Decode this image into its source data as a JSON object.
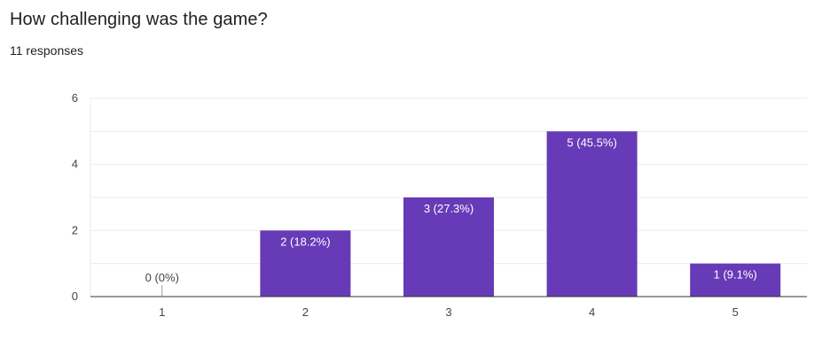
{
  "question": {
    "title": "How challenging was the game?",
    "responses": "11 responses"
  },
  "colors": {
    "bar": "#673ab7",
    "grid": "#ebebeb",
    "axis": "#333333",
    "bar_label_inside": "#ffffff",
    "bar_label_outside": "#444444"
  },
  "chart_data": {
    "type": "bar",
    "title": "How challenging was the game?",
    "categories": [
      "1",
      "2",
      "3",
      "4",
      "5"
    ],
    "values": [
      0,
      2,
      3,
      5,
      1
    ],
    "labels": [
      "0 (0%)",
      "2 (18.2%)",
      "3 (27.3%)",
      "5 (45.5%)",
      "1 (9.1%)"
    ],
    "ylim": [
      0,
      6
    ],
    "yticks": [
      0,
      2,
      4,
      6
    ],
    "grid": true,
    "xlabel": "",
    "ylabel": ""
  }
}
